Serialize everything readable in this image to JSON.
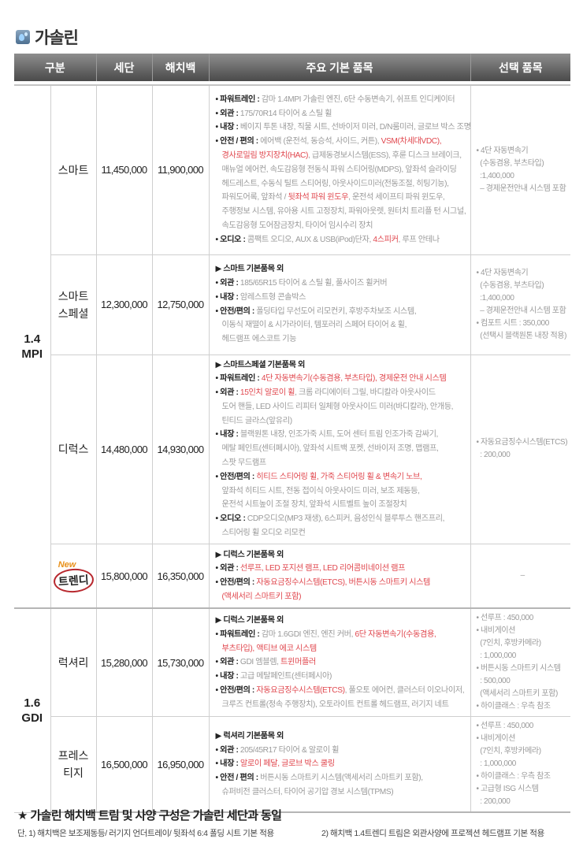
{
  "title": {
    "icon": "water-drop-icon",
    "text": "가솔린"
  },
  "colors": {
    "accent_red": "#e0474e",
    "header_dark": "#4a4a4a",
    "new_orange": "#e8901a"
  },
  "columns": [
    "구분",
    "세단",
    "해치백",
    "주요 기본 품목",
    "선택 품목"
  ],
  "rows": [
    {
      "engine": "1.4\nMPI",
      "engine_span": 4,
      "trim": "스마트",
      "sedan": "11,450,000",
      "hatch": "11,900,000",
      "header": "",
      "items": [
        {
          "label": "• 파워트레인 : ",
          "segs": [
            {
              "t": "감마 1.4MPI 가솔린 엔진, 6단 수동변속기, 쉬프트 인디케이터"
            }
          ]
        },
        {
          "label": "• 외관 : ",
          "segs": [
            {
              "t": "175/70R14 타이어 & 스틸 휠"
            }
          ]
        },
        {
          "label": "• 내장 : ",
          "segs": [
            {
              "t": "베이지 투톤 내장, 직물 시트, 선바이저 미러, D/N룸미러, 글로브 박스 조명"
            }
          ]
        },
        {
          "label": "• 안전 / 편의 : ",
          "segs": [
            {
              "t": "에어백 (운전석, 동승석, 사이드, 커튼), "
            },
            {
              "t": "VSM(차세대VDC),\n경사로밀림 방지장치(HAC)",
              "red": true
            },
            {
              "t": ", 급제동경보시스템(ESS), 후륜 디스크 브레이크,\n매뉴얼 에어컨, 속도감응형 전동식 파워 스티어링(MDPS), 앞좌석 슬라이딩\n헤드레스트, 수동식 틸트 스티어링, 아웃사이드미러(전동조절, 히팅기능),\n파워도어록, 앞좌석 / "
            },
            {
              "t": "뒷좌석 파워 윈도우",
              "red": true
            },
            {
              "t": ", 운전석 세이프티 파워 윈도우,\n주행정보 시스템, 유아용 시트 고정장치, 파워아웃렛, 원터치 트리플 턴 시그널,\n속도감응형 도어잠금장치, 타이어 임시수리 장치"
            }
          ]
        },
        {
          "label": "• 오디오 : ",
          "segs": [
            {
              "t": "콤팩트 오디오, AUX & USB(iPod)단자, "
            },
            {
              "t": "4스피커",
              "red": true
            },
            {
              "t": ", 루프 안테나"
            }
          ]
        }
      ],
      "options": [
        "• 4단 자동변속기",
        "  (수동겸용, 부츠타입)",
        "  :1,400,000",
        "  – 경제운전안내 시스템 포함"
      ]
    },
    {
      "trim": "스마트\n스페셜",
      "sedan": "12,300,000",
      "hatch": "12,750,000",
      "header": "▶ 스마트 기본품목 외",
      "items": [
        {
          "label": "• 외관 : ",
          "segs": [
            {
              "t": "185/65R15 타이어 & 스틸 휠, 풀사이즈 휠커버"
            }
          ]
        },
        {
          "label": "• 내장 : ",
          "segs": [
            {
              "t": "암레스트형 콘솔박스"
            }
          ]
        },
        {
          "label": "• 안전/편의 : ",
          "segs": [
            {
              "t": "폴딩타입 무선도어 리모컨키, 후방주차보조 시스템,\n이동식 재떨이 & 시가라이터, 템포러리 스페어 타이어 & 휠,\n헤드램프 에스코트 기능"
            }
          ]
        }
      ],
      "options": [
        "• 4단 자동변속기",
        "  (수동겸용, 부츠타입)",
        "  :1,400,000",
        "  – 경제운전안내 시스템 포함",
        "• 컴포트 시트 : 350,000",
        "  (선택시 블랙원톤 내장 적용)"
      ]
    },
    {
      "trim": "디럭스",
      "sedan": "14,480,000",
      "hatch": "14,930,000",
      "header": "▶ 스마트스페셜 기본품목 외",
      "items": [
        {
          "label": "• 파워트레인 : ",
          "segs": [
            {
              "t": "4단 자동변속기(수동겸용, 부츠타입), 경제운전 안내 시스템",
              "red": true
            }
          ]
        },
        {
          "label": "• 외관 : ",
          "segs": [
            {
              "t": "15인치 알로이 휠",
              "red": true
            },
            {
              "t": ", 크롬 라디에이터 그릴, 바디칼라 아웃사이드\n도어 핸들, LED 사이드 리피터 일체형 아웃사이드 미러(바디칼라), 안개등,\n틴티드 글라스(앞유리)"
            }
          ]
        },
        {
          "label": "• 내장 : ",
          "segs": [
            {
              "t": "블랙원톤 내장, 인조가죽 시트, 도어 센터 트림 인조가죽 감싸기,\n메탈 페인트(센터페시아), 앞좌석 시트백 포켓, 선바이저 조명, 맵램프,\n스팟 무드램프"
            }
          ]
        },
        {
          "label": "• 안전/편의 : ",
          "segs": [
            {
              "t": "히티드 스티어링 휠, 가죽 스티어링 휠 & 변속기 노브,",
              "red": true
            },
            {
              "t": "\n앞좌석 히티드 시트, 전동 접이식 아웃사이드 미러, 보조 제동등,\n운전석 시트높이 조절 장치, 앞좌석 시트벨트 높이 조절장치"
            }
          ]
        },
        {
          "label": "• 오디오 : ",
          "segs": [
            {
              "t": "CDP오디오(MP3 재생), 6스피커, 음성인식 블루투스 핸즈프리,\n스티어링 휠 오디오 리모컨"
            }
          ]
        }
      ],
      "options": [
        "• 자동요금징수시스템(ETCS)",
        "  : 200,000"
      ]
    },
    {
      "trim": "트렌디",
      "new_badge": "New",
      "sedan": "15,800,000",
      "hatch": "16,350,000",
      "header": "▶ 디럭스 기본품목 외",
      "items": [
        {
          "label": "• 외관 : ",
          "segs": [
            {
              "t": "선루프, LED 포지션 램프, LED 리어콤비네이션 램프",
              "red": true
            }
          ]
        },
        {
          "label": "• 안전/편의 : ",
          "segs": [
            {
              "t": "자동요금징수시스템(ETCS), 버튼시동 스마트키 시스템\n(액세서리 스마트키 포함)",
              "red": true
            }
          ]
        }
      ],
      "options": [
        "–"
      ]
    },
    {
      "engine": "1.6\nGDI",
      "engine_span": 2,
      "trim": "럭셔리",
      "sedan": "15,280,000",
      "hatch": "15,730,000",
      "header": "▶ 디럭스 기본품목 외",
      "items": [
        {
          "label": "• 파워트레인 : ",
          "segs": [
            {
              "t": "감마 1.6GDI 엔진, 엔진 커버, "
            },
            {
              "t": "6단 자동변속기(수동겸용,\n부츠타입), 액티브 에코 시스템",
              "red": true
            }
          ]
        },
        {
          "label": "• 외관 : ",
          "segs": [
            {
              "t": "GDI 엠블렘, "
            },
            {
              "t": "트윈머플러",
              "red": true
            }
          ]
        },
        {
          "label": "• 내장 : ",
          "segs": [
            {
              "t": "고급 메탈페인트(센터페시아)"
            }
          ]
        },
        {
          "label": "• 안전/편의 : ",
          "segs": [
            {
              "t": "자동요금징수시스템(ETCS)",
              "red": true
            },
            {
              "t": ", 풀오토 에어컨, 클러스터 이오나이저,\n크루즈 컨트롤(정속 주행장치), 오토라이트 컨트롤 헤드램프, 러기지 네트"
            }
          ]
        }
      ],
      "options": [
        "• 선루프 : 450,000",
        "• 내비게이션",
        "  (7인치, 후방카메라)",
        "  : 1,000,000",
        "• 버튼시동 스마트키 시스템",
        "  : 500,000",
        "  (액세서리 스마트키 포함)",
        "• 하이클래스 : 우측 참조"
      ]
    },
    {
      "trim": "프레스\n티지",
      "sedan": "16,500,000",
      "hatch": "16,950,000",
      "header": "▶ 럭셔리 기본품목 외",
      "items": [
        {
          "label": "• 외관 : ",
          "segs": [
            {
              "t": "205/45R17 타이어 & 알로이 휠"
            }
          ]
        },
        {
          "label": "• 내장 : ",
          "segs": [
            {
              "t": "알로이 페달, 글로브 박스 쿨링",
              "red": true
            }
          ]
        },
        {
          "label": "• 안전 / 편의 : ",
          "segs": [
            {
              "t": "버튼시동 스마트키 시스템(액세서리 스마트키 포함),\n슈퍼비전 클러스터, 타이어 공기압 경보 시스템(TPMS)"
            }
          ]
        }
      ],
      "options": [
        "• 선루프 : 450,000",
        "• 내비게이션",
        "  (7인치, 후방카메라)",
        "  : 1,000,000",
        "• 하이클래스 : 우측 참조",
        "• 고급형 ISG 시스템",
        "  : 200,000"
      ]
    }
  ],
  "footer": {
    "headline": "★ 가솔린 해치백 트림 및 사양 구성은 가솔린 세단과 동일",
    "note1": "단, 1) 해치백은 보조제동등/ 러기지 언더트레이/ 뒷좌석 6:4 폴딩 시트 기본 적용",
    "note2": "2) 해치백 1.4트렌디 트림은 외관사양에 프로젝션 헤드램프 기본 적용"
  }
}
